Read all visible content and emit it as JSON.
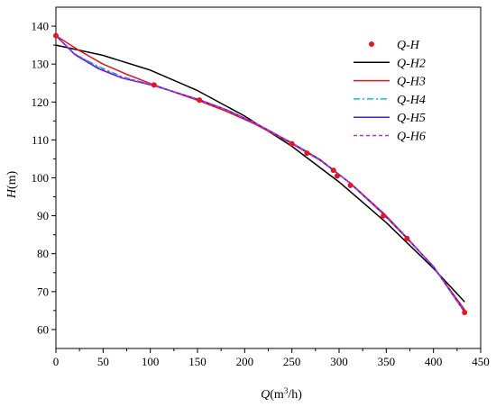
{
  "chart_data": {
    "type": "line",
    "xlabel": {
      "italic": "Q",
      "unit_pre": "(m",
      "unit_sup": "3",
      "unit_post": "/h)"
    },
    "ylabel": {
      "italic": "H",
      "unit": "(m)"
    },
    "xlim": [
      0,
      450
    ],
    "ylim": [
      55,
      145
    ],
    "x_ticks": [
      0,
      50,
      100,
      150,
      200,
      250,
      300,
      350,
      400,
      450
    ],
    "y_ticks": [
      60,
      70,
      80,
      90,
      100,
      110,
      120,
      130,
      140
    ],
    "grid": false,
    "legend_position": "top-right",
    "series": [
      {
        "name": "Q-H",
        "kind": "points",
        "color": "#e8141e",
        "x": [
          0,
          104,
          152,
          250,
          266,
          294,
          298,
          312,
          347,
          372,
          433
        ],
        "y": [
          137.5,
          124.5,
          120.5,
          109,
          106.5,
          102,
          100.5,
          98,
          90,
          84,
          64.5
        ]
      },
      {
        "name": "Q-H2",
        "kind": "line",
        "color": "#000000",
        "dash": "",
        "x": [
          0,
          50,
          100,
          150,
          200,
          250,
          300,
          350,
          400,
          433
        ],
        "y": [
          135,
          132.3,
          128.4,
          123,
          116.3,
          108.3,
          98.9,
          88.2,
          76.1,
          67.3
        ]
      },
      {
        "name": "Q-H3",
        "kind": "line",
        "color": "#e8141e",
        "dash": "",
        "x": [
          0,
          25,
          50,
          75,
          104,
          130,
          152,
          180,
          210,
          250,
          280,
          312,
          347,
          372,
          400,
          433
        ],
        "y": [
          137.5,
          133.5,
          130,
          127.3,
          124.5,
          122.2,
          120.3,
          117.6,
          114.3,
          109,
          104.6,
          98.6,
          90.7,
          84.2,
          76.5,
          65.2
        ]
      },
      {
        "name": "Q-H4",
        "kind": "line",
        "color": "#00c8d0",
        "dash": "7,3,2,3",
        "x": [
          0,
          20,
          45,
          70,
          104,
          130,
          152,
          180,
          210,
          250,
          280,
          312,
          347,
          372,
          400,
          433
        ],
        "y": [
          137.5,
          132.6,
          129.4,
          126.7,
          124.4,
          122.3,
          120.6,
          118,
          114.6,
          109.2,
          104.8,
          98.5,
          90.4,
          84,
          76.6,
          64.6
        ]
      },
      {
        "name": "Q-H5",
        "kind": "line",
        "color": "#2a2ae0",
        "dash": "",
        "x": [
          0,
          20,
          45,
          70,
          104,
          130,
          152,
          180,
          210,
          250,
          280,
          312,
          347,
          372,
          400,
          433
        ],
        "y": [
          137.5,
          132.5,
          128.8,
          126.3,
          124.3,
          122.3,
          120.6,
          118,
          114.6,
          109.2,
          104.8,
          98.5,
          90.4,
          84,
          76.6,
          64.6
        ]
      },
      {
        "name": "Q-H6",
        "kind": "line",
        "color": "#e020e0",
        "dash": "4,3",
        "x": [
          0,
          20,
          45,
          70,
          104,
          130,
          152,
          180,
          210,
          250,
          280,
          312,
          347,
          372,
          400,
          433
        ],
        "y": [
          137.5,
          132.7,
          129.1,
          126.5,
          124.4,
          122.3,
          120.6,
          118,
          114.6,
          109.2,
          104.8,
          98.5,
          90.4,
          84,
          76.6,
          64.6
        ]
      }
    ]
  }
}
